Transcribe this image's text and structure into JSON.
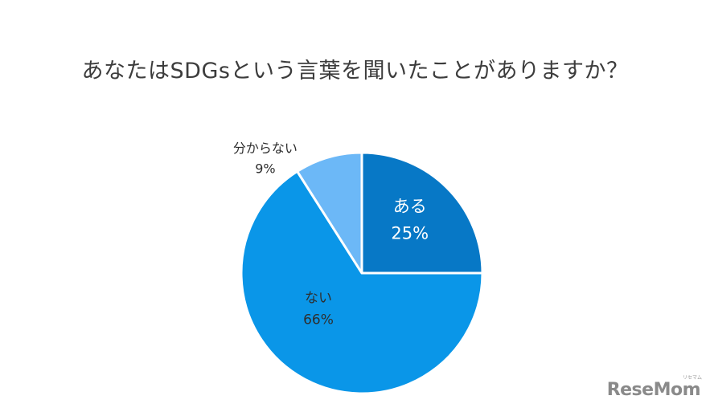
{
  "chart_data": {
    "type": "pie",
    "title": "あなたはSDGsという言葉を聞いたことがありますか？",
    "slices": [
      {
        "label": "ある",
        "value": 25,
        "value_label": "25%",
        "color": "#0778c6"
      },
      {
        "label": "ない",
        "value": 66,
        "value_label": "66%",
        "color": "#0a96e8"
      },
      {
        "label": "分からない",
        "value": 9,
        "value_label": "9%",
        "color": "#6cb8f7"
      }
    ],
    "start_angle": "12 o'clock",
    "direction": "clockwise",
    "legend": "none",
    "label_placement": "inside for ある and ない, outside for 分からない"
  },
  "watermark": {
    "text": "ReseMom",
    "small_text": "リセマム"
  }
}
